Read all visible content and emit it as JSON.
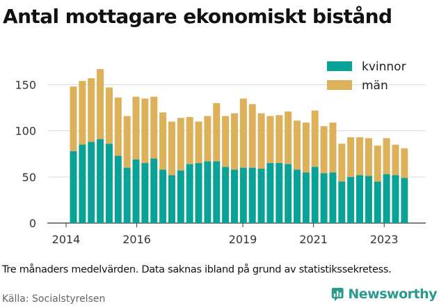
{
  "title": "Antal mottagare ekonomiskt bistånd",
  "note": "Tre månaders medelvärden. Data saknas ibland på grund av statistikssekretess.",
  "source": "Källa: Socialstyrelsen",
  "logo": {
    "text": "Newsworthy",
    "icon": "newsworthy-chart-icon"
  },
  "colors": {
    "kvinnor": "#0aa197",
    "man": "#ddb05a",
    "logo": "#2a9a8e"
  },
  "chart_data": {
    "type": "bar",
    "stacked": true,
    "title": "Antal mottagare ekonomiskt bistånd",
    "ylim": [
      0,
      175
    ],
    "yticks": [
      0,
      50,
      100,
      150
    ],
    "xticks": [
      "2014",
      "2016",
      "2019",
      "2021",
      "2023"
    ],
    "legend_position": "top-right",
    "series": [
      {
        "name": "kvinnor",
        "values": [
          78,
          85,
          88,
          91,
          86,
          73,
          60,
          69,
          65,
          70,
          58,
          52,
          57,
          64,
          65,
          67,
          67,
          61,
          58,
          60,
          60,
          59,
          65,
          65,
          64,
          58,
          55,
          61,
          54,
          55,
          45,
          50,
          52,
          51,
          45,
          53,
          52,
          49
        ]
      },
      {
        "name": "män",
        "values": [
          70,
          69,
          69,
          76,
          61,
          63,
          56,
          68,
          70,
          67,
          62,
          58,
          57,
          51,
          45,
          49,
          63,
          55,
          61,
          75,
          69,
          60,
          51,
          52,
          57,
          53,
          54,
          61,
          51,
          54,
          41,
          43,
          41,
          41,
          39,
          39,
          33,
          32
        ]
      }
    ]
  }
}
